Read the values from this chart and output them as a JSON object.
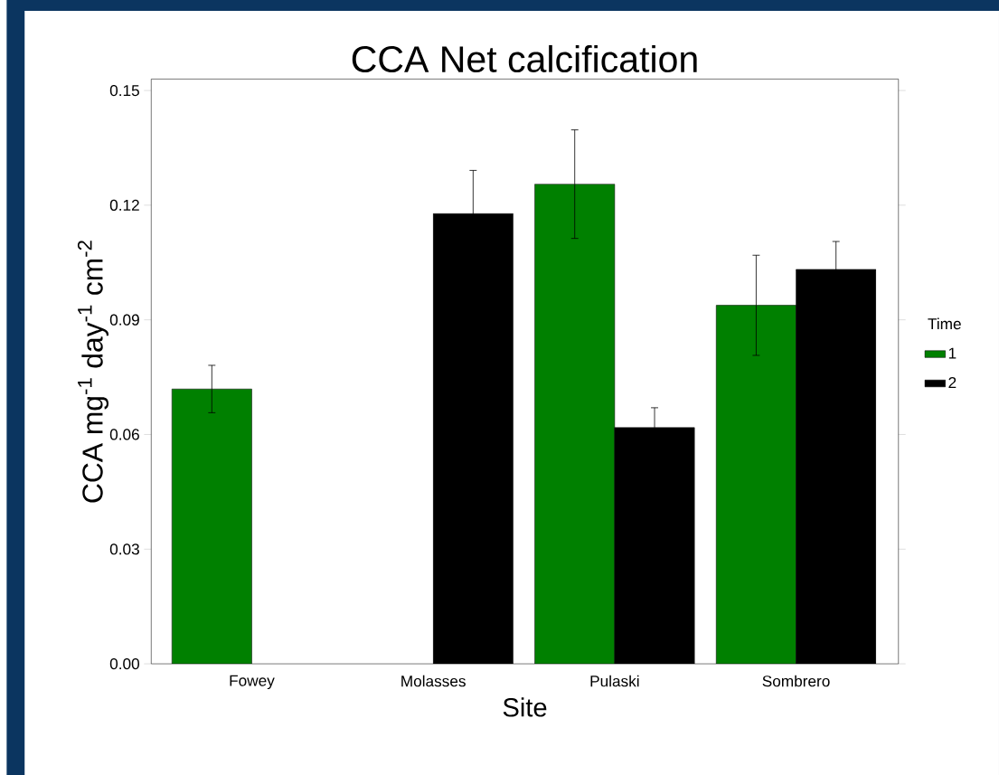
{
  "chart_data": {
    "type": "bar",
    "title": "CCA Net calcification",
    "xlabel": "Site",
    "ylabel": "CCA mg$^{-1}$ day$^{-1}$ cm$^{-2}$",
    "legend_title": "Time",
    "categories": [
      "Fowey",
      "Molasses",
      "Pulaski",
      "Sombrero"
    ],
    "series": [
      {
        "name": "1",
        "color": "#008000",
        "values": [
          0.0719,
          null,
          0.1255,
          0.0938
        ],
        "errors": [
          0.0062,
          null,
          0.0142,
          0.0131
        ]
      },
      {
        "name": "2",
        "color": "#000000",
        "values": [
          null,
          0.1178,
          0.0618,
          0.1032
        ],
        "errors": [
          null,
          0.0113,
          0.0052,
          0.0073
        ]
      }
    ],
    "ylim": [
      0,
      0.153
    ],
    "yticks": [
      {
        "value": 0,
        "label": "0.00"
      },
      0.03,
      0.06,
      0.09,
      0.12,
      0.15
    ],
    "legend": "right"
  }
}
